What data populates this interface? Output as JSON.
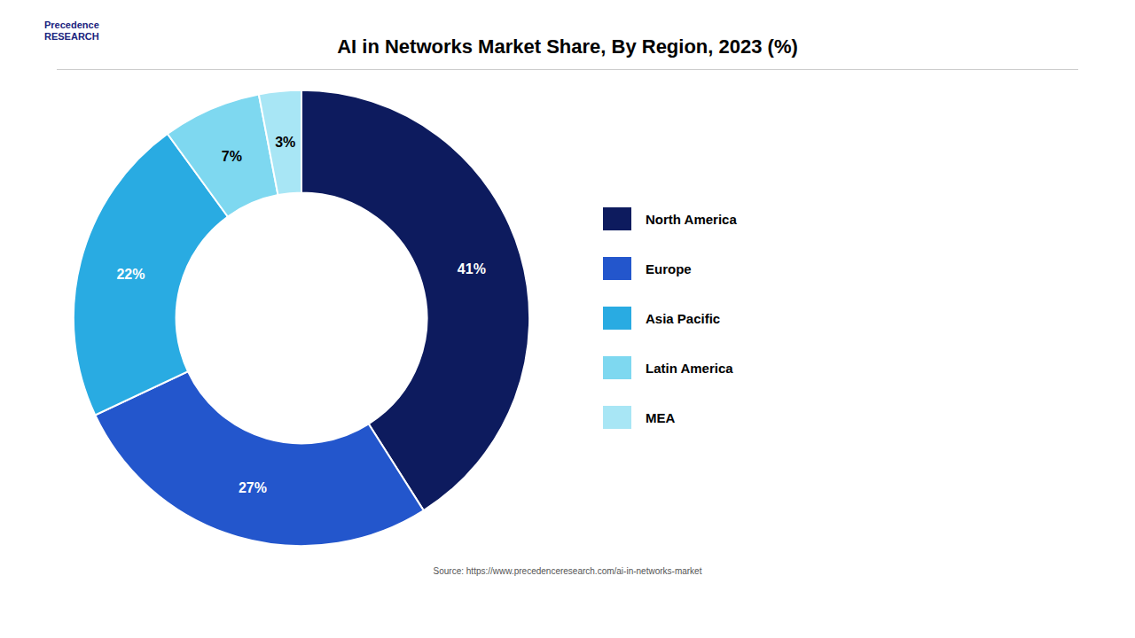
{
  "chart_data": {
    "type": "pie",
    "title": "AI in Networks Market Share, By Region, 2023 (%)",
    "categories": [
      "North America",
      "Europe",
      "Asia Pacific",
      "Latin America",
      "MEA"
    ],
    "values": [
      41,
      27,
      22,
      7,
      3
    ],
    "value_labels": [
      "41%",
      "27%",
      "22%",
      "7%",
      "3%"
    ],
    "colors": [
      "#0d1b5e",
      "#2356cc",
      "#29abe2",
      "#7ed8f0",
      "#a8e6f5"
    ],
    "data_labels": true,
    "legend": "right",
    "annotations": [
      "Precedence\nRESEARCH",
      "Source: https://www.precedenceresearch.com/ai-in-networks-market"
    ]
  }
}
